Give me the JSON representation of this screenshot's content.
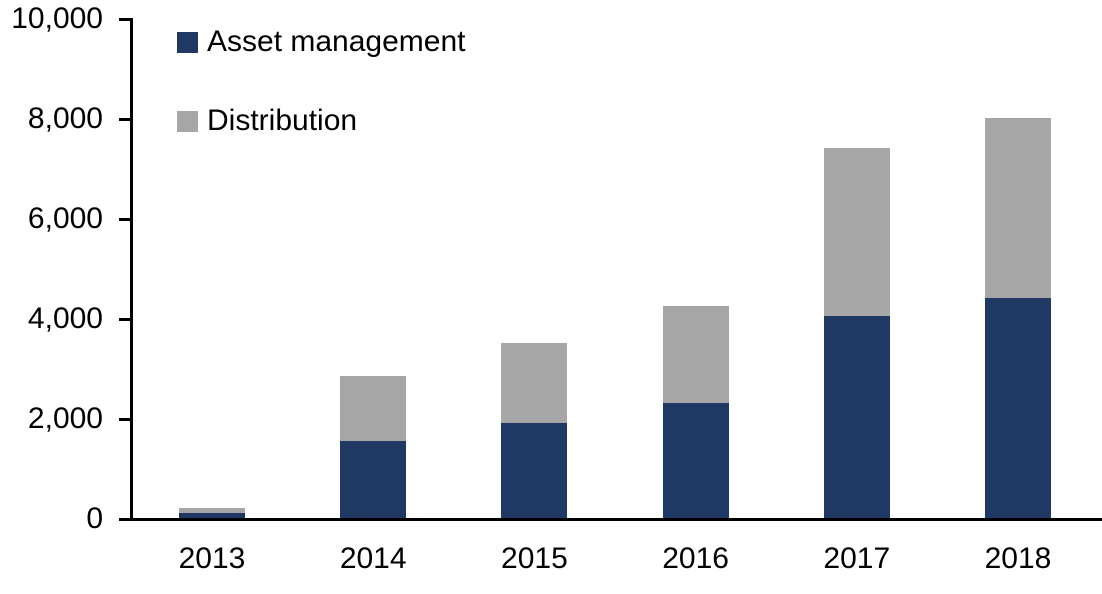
{
  "chart_data": {
    "type": "bar",
    "stacked": true,
    "title": "",
    "xlabel": "",
    "ylabel": "",
    "categories": [
      "2013",
      "2014",
      "2015",
      "2016",
      "2017",
      "2018"
    ],
    "series": [
      {
        "name": "Asset management",
        "color": "#1F3864",
        "values": [
          100,
          1550,
          1900,
          2300,
          4050,
          4400
        ]
      },
      {
        "name": "Distribution",
        "color": "#A6A6A6",
        "values": [
          100,
          1300,
          1600,
          1950,
          3350,
          3600
        ]
      }
    ],
    "totals": [
      200,
      2850,
      3500,
      4250,
      7400,
      8000
    ],
    "ylim": [
      0,
      10000
    ],
    "yticks": [
      {
        "value": 0,
        "label": "0"
      },
      {
        "value": 2000,
        "label": "2,000"
      },
      {
        "value": 4000,
        "label": "4,000"
      },
      {
        "value": 6000,
        "label": "6,000"
      },
      {
        "value": 8000,
        "label": "8,000"
      },
      {
        "value": 10000,
        "label": "10,000"
      }
    ],
    "grid": false,
    "legend_position": "top-left"
  },
  "colors": {
    "axis": "#000000",
    "text": "#000000",
    "background": "#FFFFFF"
  }
}
